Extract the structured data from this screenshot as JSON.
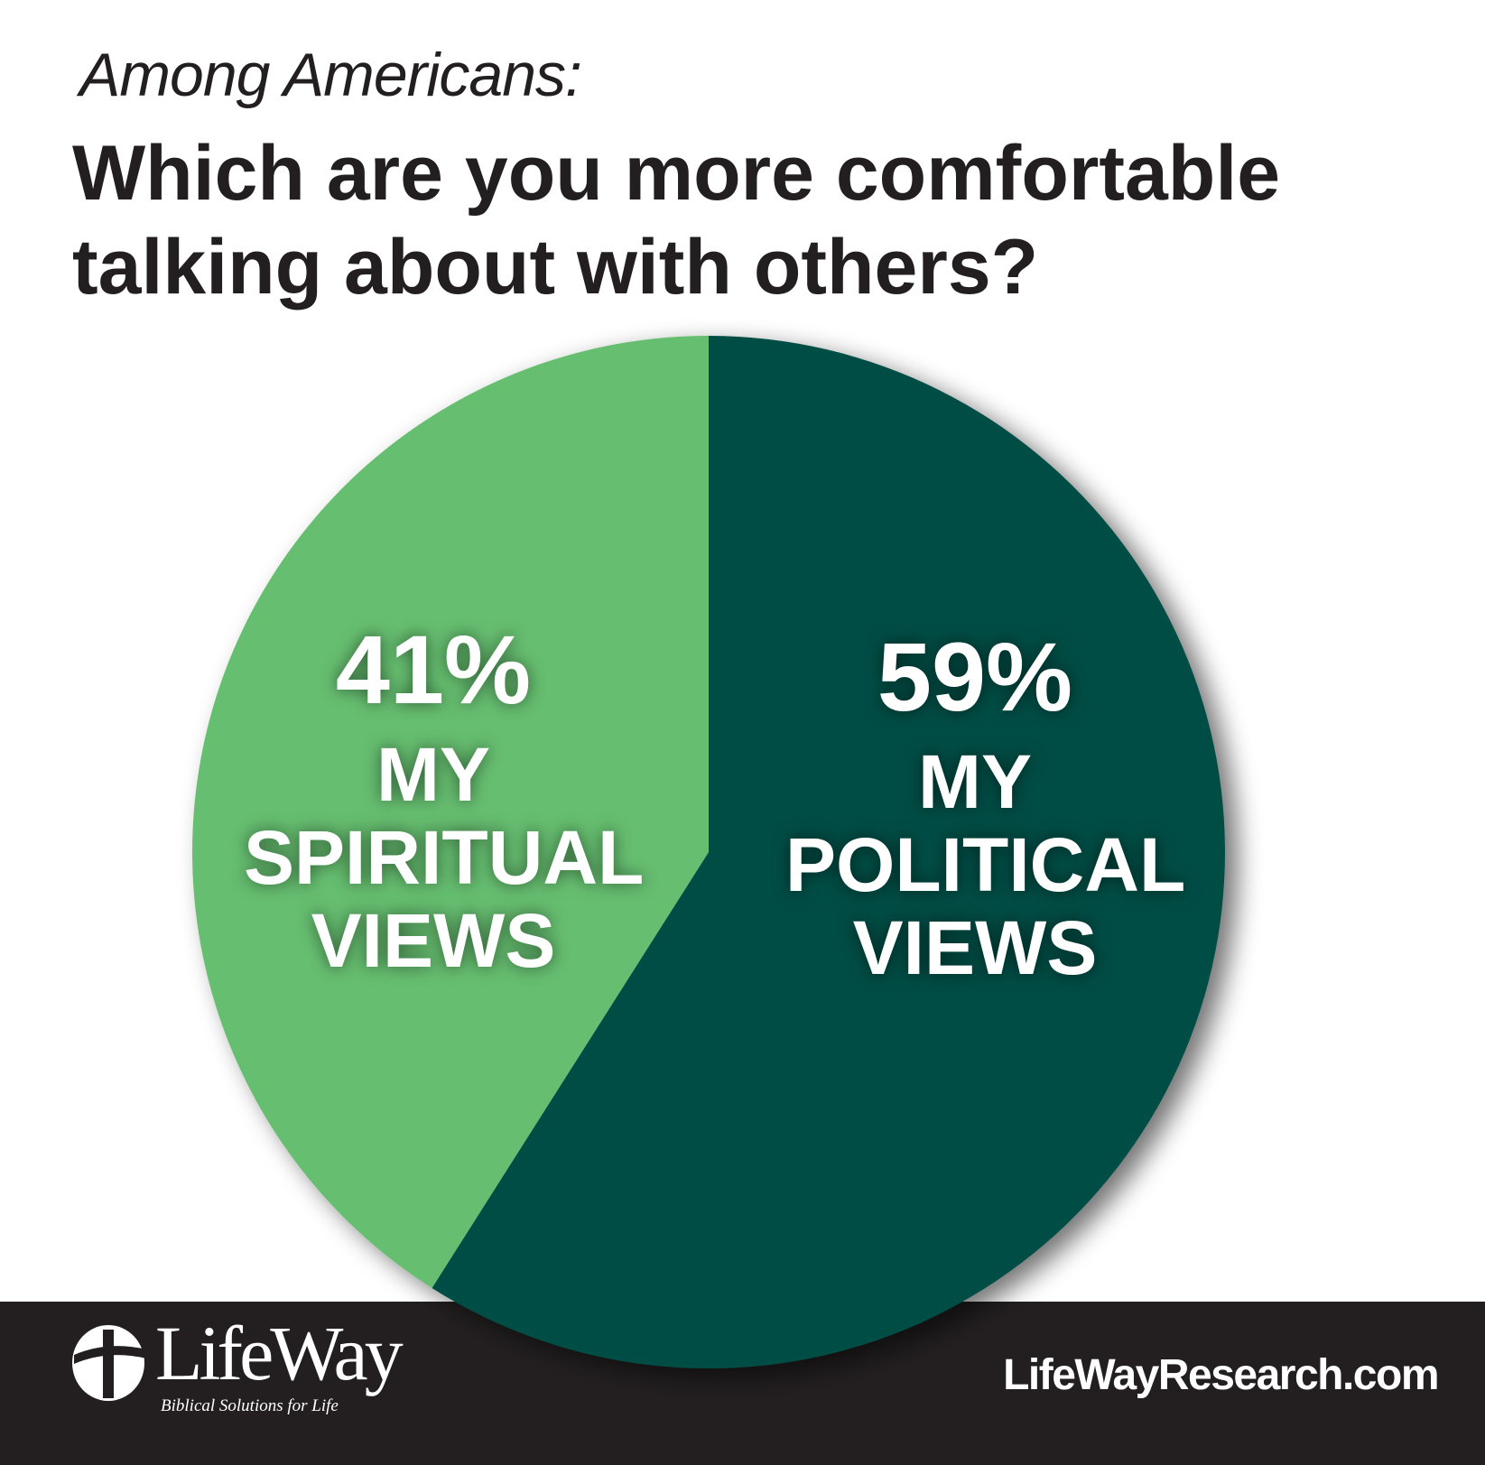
{
  "chart_data": {
    "type": "pie",
    "subtitle": "Among Americans:",
    "title": "Which are you more comfortable talking about with others?",
    "slices": [
      {
        "label": "MY POLITICAL VIEWS",
        "value": 59,
        "value_label": "59%",
        "color": "#024d45"
      },
      {
        "label": "MY SPIRITUAL VIEWS",
        "value": 41,
        "value_label": "41%",
        "color": "#66be6f"
      }
    ]
  },
  "footer": {
    "logo_text": "LifeWay",
    "logo_tagline": "Biblical Solutions for Life",
    "url": "LifeWayResearch.com"
  }
}
